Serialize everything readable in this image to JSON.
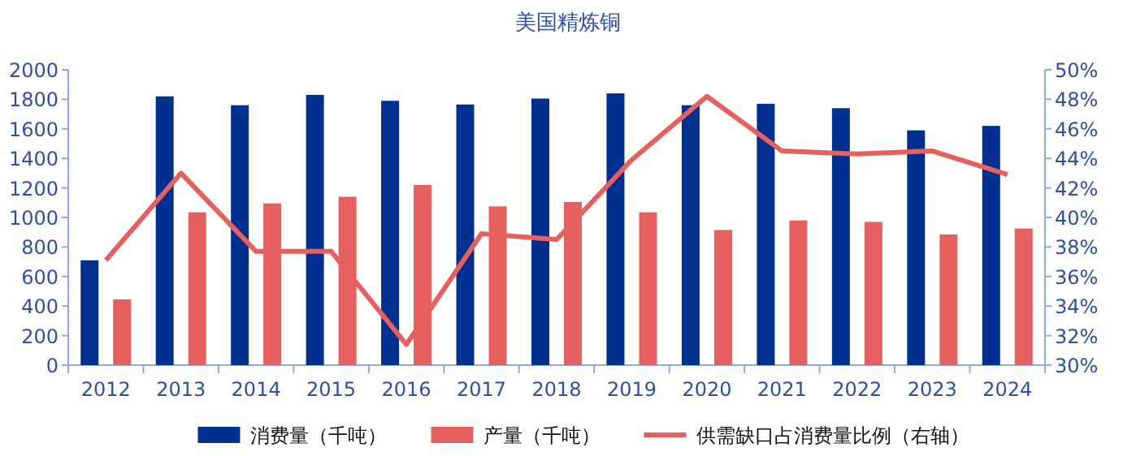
{
  "chart_data": {
    "type": "bar",
    "title": "美国精炼铜",
    "categories": [
      "2012",
      "2013",
      "2014",
      "2015",
      "2016",
      "2017",
      "2018",
      "2019",
      "2020",
      "2021",
      "2022",
      "2023",
      "2024"
    ],
    "series": [
      {
        "name": "消费量（千吨）",
        "color": "#00308f",
        "values": [
          710,
          1820,
          1760,
          1830,
          1790,
          1765,
          1805,
          1840,
          1760,
          1770,
          1740,
          1590,
          1620
        ]
      },
      {
        "name": "产量（千吨）",
        "color": "#e66060",
        "values": [
          445,
          1035,
          1095,
          1140,
          1220,
          1075,
          1105,
          1035,
          915,
          980,
          970,
          885,
          925
        ]
      },
      {
        "name": "供需缺口占消费量比例（右轴）",
        "type": "line",
        "axis": "y2",
        "color": "#e66060",
        "values": [
          37.1,
          43.0,
          37.7,
          37.7,
          31.4,
          38.9,
          38.5,
          43.9,
          48.2,
          44.5,
          44.3,
          44.5,
          42.9
        ]
      }
    ],
    "ylim": [
      0,
      2000
    ],
    "yticks": [
      0,
      200,
      400,
      600,
      800,
      1000,
      1200,
      1400,
      1600,
      1800,
      2000
    ],
    "y2lim": [
      30,
      50
    ],
    "y2ticks": [
      {
        "value": 30,
        "label": "30%"
      },
      {
        "value": 32,
        "label": "32%"
      },
      {
        "value": 34,
        "label": "34%"
      },
      {
        "value": 36,
        "label": "36%"
      },
      {
        "value": 38,
        "label": "38%"
      },
      {
        "value": 40,
        "label": "40%"
      },
      {
        "value": 42,
        "label": "42%"
      },
      {
        "value": 44,
        "label": "44%"
      },
      {
        "value": 46,
        "label": "46%"
      },
      {
        "value": 48,
        "label": "48%"
      },
      {
        "value": 50,
        "label": "50%"
      }
    ],
    "legend": "bottom",
    "grid": false,
    "marker": "none"
  }
}
